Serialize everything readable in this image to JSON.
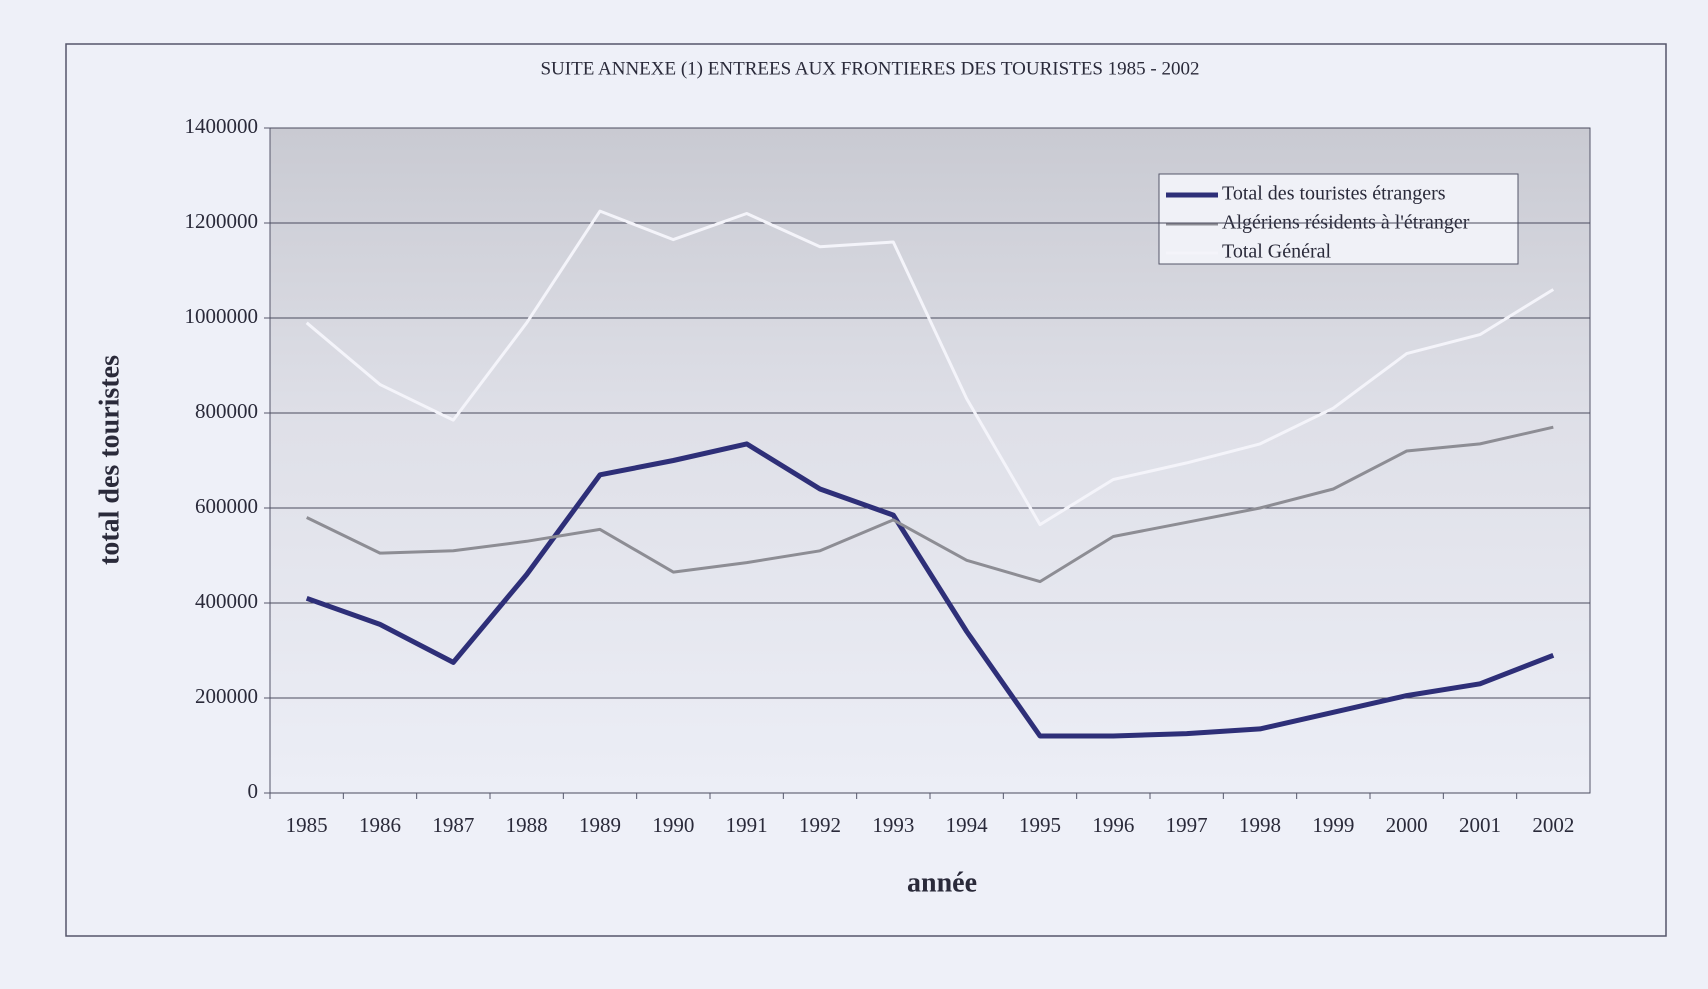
{
  "chart_data": {
    "type": "line",
    "title": "SUITE ANNEXE (1) ENTREES AUX FRONTIERES DES TOURISTES 1985 - 2002",
    "xlabel": "année",
    "ylabel": "total des touristes",
    "categories": [
      "1985",
      "1986",
      "1987",
      "1988",
      "1989",
      "1990",
      "1991",
      "1992",
      "1993",
      "1994",
      "1995",
      "1996",
      "1997",
      "1998",
      "1999",
      "2000",
      "2001",
      "2002"
    ],
    "series": [
      {
        "name": "Total des touristes  étrangers",
        "color": "#2e2f78",
        "values": [
          410000,
          355000,
          275000,
          460000,
          670000,
          700000,
          735000,
          640000,
          585000,
          340000,
          120000,
          120000,
          125000,
          135000,
          170000,
          205000,
          230000,
          290000
        ]
      },
      {
        "name": "Algériens résidents à l'étranger",
        "color": "#8d8d94",
        "values": [
          580000,
          505000,
          510000,
          530000,
          555000,
          465000,
          485000,
          510000,
          575000,
          490000,
          445000,
          540000,
          570000,
          600000,
          640000,
          720000,
          735000,
          770000
        ]
      },
      {
        "name": "Total Général",
        "color": "#f4f4fa",
        "values": [
          990000,
          860000,
          785000,
          990000,
          1225000,
          1165000,
          1220000,
          1150000,
          1160000,
          830000,
          565000,
          660000,
          695000,
          735000,
          810000,
          925000,
          965000,
          1060000
        ]
      }
    ],
    "ylim": [
      0,
      1400000
    ],
    "yticks": [
      0,
      200000,
      400000,
      600000,
      800000,
      1000000,
      1200000,
      1400000
    ],
    "grid": true,
    "legend": "upper right"
  }
}
